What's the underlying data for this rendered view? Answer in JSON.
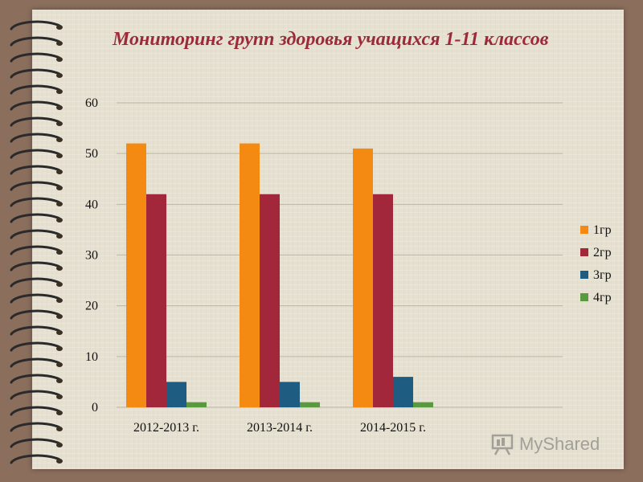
{
  "slide": {
    "title": "Мониторинг групп здоровья учащихся 1-11 классов",
    "watermark": "MyShared"
  },
  "colors": {
    "background": "#8b6e5c",
    "paper": "#e6e0d0",
    "title": "#9b2a3a",
    "grid": "#bdb6a6"
  },
  "chart_data": {
    "type": "bar",
    "title": "Мониторинг групп здоровья учащихся 1-11 классов",
    "xlabel": "",
    "ylabel": "",
    "ylim": [
      0,
      60
    ],
    "yticks": [
      "0",
      "10",
      "20",
      "30",
      "40",
      "50",
      "60"
    ],
    "grid": true,
    "legend_position": "right",
    "categories": [
      "2012-2013 г.",
      "2013-2014 г.",
      "2014-2015 г."
    ],
    "series": [
      {
        "name": "1гр",
        "values": [
          52,
          52,
          51
        ],
        "color": "#f58a12"
      },
      {
        "name": "2гр",
        "values": [
          42,
          42,
          42
        ],
        "color": "#a3273a"
      },
      {
        "name": "3гр",
        "values": [
          5,
          5,
          6
        ],
        "color": "#1f5c82"
      },
      {
        "name": "4гр",
        "values": [
          1,
          1,
          1
        ],
        "color": "#5a9a3e"
      }
    ]
  }
}
